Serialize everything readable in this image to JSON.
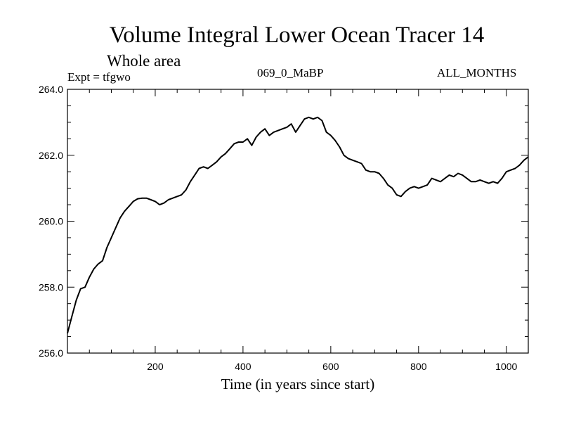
{
  "chart_data": {
    "type": "line",
    "title": "Volume Integral Lower Ocean Tracer 14",
    "subtitle": "Whole area",
    "experiment_label": "Expt = tfgwo",
    "run_label": "069_0_MaBP",
    "months_label": "ALL_MONTHS",
    "xlabel": "Time (in years since start)",
    "ylabel": "",
    "xlim": [
      0,
      1050
    ],
    "ylim": [
      256.0,
      264.0
    ],
    "x_ticks": [
      200,
      400,
      600,
      800,
      1000
    ],
    "x_tick_labels": [
      "200",
      "400",
      "600",
      "800",
      "1000"
    ],
    "y_ticks": [
      256.0,
      258.0,
      260.0,
      262.0,
      264.0
    ],
    "y_tick_labels": [
      "256.0",
      "258.0",
      "260.0",
      "262.0",
      "264.0"
    ],
    "grid": false,
    "series": [
      {
        "name": "Lower Ocean Tracer 14",
        "x": [
          0,
          10,
          20,
          30,
          40,
          50,
          60,
          70,
          80,
          90,
          100,
          110,
          120,
          130,
          140,
          150,
          160,
          170,
          180,
          190,
          200,
          210,
          220,
          230,
          240,
          250,
          260,
          270,
          280,
          290,
          300,
          310,
          320,
          330,
          340,
          350,
          360,
          370,
          380,
          390,
          400,
          410,
          420,
          430,
          440,
          450,
          460,
          470,
          480,
          490,
          500,
          510,
          520,
          530,
          540,
          550,
          560,
          570,
          580,
          590,
          600,
          610,
          620,
          630,
          640,
          650,
          660,
          670,
          680,
          690,
          700,
          710,
          720,
          730,
          740,
          750,
          760,
          770,
          780,
          790,
          800,
          810,
          820,
          830,
          840,
          850,
          860,
          870,
          880,
          890,
          900,
          910,
          920,
          930,
          940,
          950,
          960,
          970,
          980,
          990,
          1000,
          1010,
          1020,
          1030,
          1040,
          1050
        ],
        "values": [
          256.6,
          257.1,
          257.6,
          257.95,
          258.0,
          258.3,
          258.55,
          258.7,
          258.8,
          259.2,
          259.5,
          259.8,
          260.1,
          260.3,
          260.45,
          260.6,
          260.68,
          260.7,
          260.7,
          260.65,
          260.6,
          260.5,
          260.55,
          260.65,
          260.7,
          260.75,
          260.8,
          260.95,
          261.2,
          261.4,
          261.6,
          261.65,
          261.6,
          261.7,
          261.8,
          261.95,
          262.05,
          262.2,
          262.35,
          262.4,
          262.4,
          262.5,
          262.3,
          262.55,
          262.7,
          262.8,
          262.6,
          262.7,
          262.75,
          262.8,
          262.85,
          262.95,
          262.7,
          262.9,
          263.1,
          263.15,
          263.1,
          263.15,
          263.05,
          262.7,
          262.6,
          262.45,
          262.25,
          262.0,
          261.9,
          261.85,
          261.8,
          261.75,
          261.55,
          261.5,
          261.5,
          261.45,
          261.3,
          261.1,
          261.0,
          260.8,
          260.75,
          260.9,
          261.0,
          261.05,
          261.0,
          261.05,
          261.1,
          261.3,
          261.25,
          261.2,
          261.3,
          261.4,
          261.35,
          261.45,
          261.4,
          261.3,
          261.2,
          261.2,
          261.25,
          261.2,
          261.15,
          261.2,
          261.15,
          261.3,
          261.5,
          261.55,
          261.6,
          261.7,
          261.85,
          261.95
        ]
      }
    ]
  }
}
